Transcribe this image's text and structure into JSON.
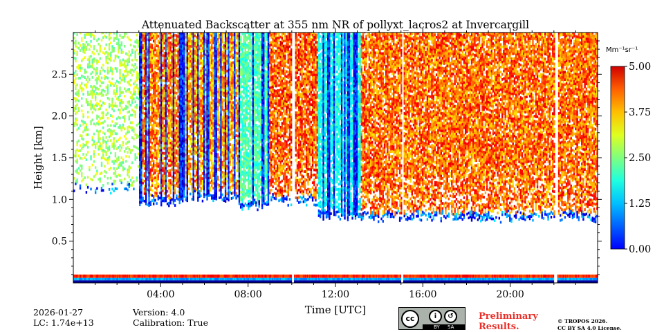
{
  "chart_data": {
    "type": "heatmap",
    "title": "Attenuated Backscatter at 355 nm NR of pollyxt_lacros2 at Invercargill",
    "xlabel": "Time [UTC]",
    "ylabel": "Height [km]",
    "xlim_hours": [
      0,
      24
    ],
    "ylim_km": [
      0,
      3.0
    ],
    "x_ticks": [
      {
        "hour": 4,
        "label": "04:00"
      },
      {
        "hour": 8,
        "label": "08:00"
      },
      {
        "hour": 12,
        "label": "12:00"
      },
      {
        "hour": 16,
        "label": "16:00"
      },
      {
        "hour": 20,
        "label": "20:00"
      }
    ],
    "y_ticks": [
      {
        "km": 0.5,
        "label": "0.5"
      },
      {
        "km": 1.0,
        "label": "1.0"
      },
      {
        "km": 1.5,
        "label": "1.5"
      },
      {
        "km": 2.0,
        "label": "2.0"
      },
      {
        "km": 2.5,
        "label": "2.5"
      }
    ],
    "colorbar": {
      "unit": "Mm⁻¹sr⁻¹",
      "min": 0.0,
      "max": 5.0,
      "colormap": "jet",
      "ticks": [
        {
          "value": 0.0,
          "label": "0.00"
        },
        {
          "value": 1.25,
          "label": "1.25"
        },
        {
          "value": 2.5,
          "label": "2.50"
        },
        {
          "value": 3.75,
          "label": "3.75"
        },
        {
          "value": 5.0,
          "label": "5.00"
        }
      ]
    },
    "data_gaps_hours": [
      [
        10.0,
        10.1
      ],
      [
        15.0,
        15.08
      ],
      [
        22.0,
        22.15
      ]
    ],
    "cloud_segments": [
      {
        "start": 0.0,
        "end": 3.0,
        "base_km": 1.1,
        "max": 3.0
      },
      {
        "start": 3.0,
        "end": 5.0,
        "base_km": 0.95,
        "max": 4.2
      },
      {
        "start": 5.0,
        "end": 7.5,
        "base_km": 1.0,
        "max": 4.0
      },
      {
        "start": 7.5,
        "end": 8.9,
        "base_km": 0.9,
        "max": 2.5
      },
      {
        "start": 8.9,
        "end": 11.2,
        "base_km": 0.95,
        "max": 4.4
      },
      {
        "start": 11.2,
        "end": 13.1,
        "base_km": 0.78,
        "max": 2.2
      },
      {
        "start": 13.1,
        "end": 24.0,
        "base_km": 0.75,
        "max": 4.3
      }
    ],
    "version_label": "Version: 4.0",
    "calibration_label": "Calibration: True",
    "date": "2026-01-27",
    "lidar_constant_label": "LC: 1.74e+13"
  },
  "footer": {
    "preliminary": [
      "Preliminary",
      "Results."
    ],
    "copyright": [
      "© TROPOS 2026.",
      "CC BY SA 4.0 License."
    ],
    "license_badge": {
      "main": "cc",
      "by": "BY",
      "sa": "SA"
    }
  },
  "colors": {
    "preliminary": "#e8302a",
    "badge_bg": "#aab2ab"
  }
}
